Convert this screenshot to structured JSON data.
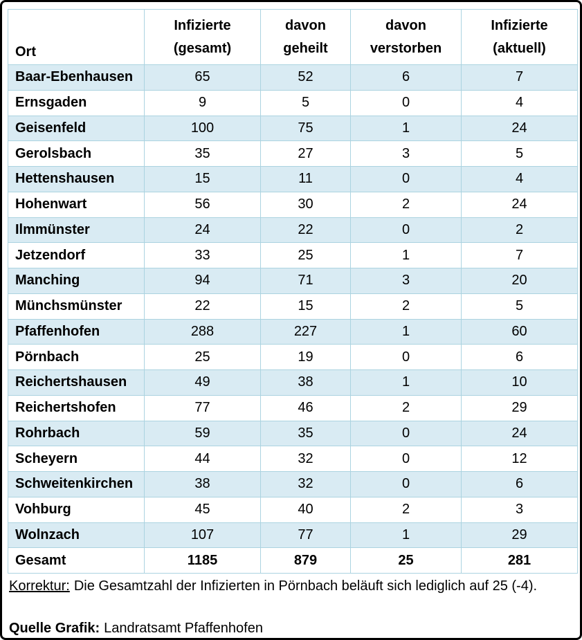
{
  "table": {
    "header": {
      "ort": "Ort",
      "infizierte_gesamt": [
        "Infizierte",
        "(gesamt)"
      ],
      "davon_geheilt": [
        "davon",
        "geheilt"
      ],
      "davon_verstorben": [
        "davon",
        "verstorben"
      ],
      "infizierte_aktuell": [
        "Infizierte",
        "(aktuell)"
      ]
    },
    "rows": [
      [
        "Baar-Ebenhausen",
        65,
        52,
        6,
        7
      ],
      [
        "Ernsgaden",
        9,
        5,
        0,
        4
      ],
      [
        "Geisenfeld",
        100,
        75,
        1,
        24
      ],
      [
        "Gerolsbach",
        35,
        27,
        3,
        5
      ],
      [
        "Hettenshausen",
        15,
        11,
        0,
        4
      ],
      [
        "Hohenwart",
        56,
        30,
        2,
        24
      ],
      [
        "Ilmmünster",
        24,
        22,
        0,
        2
      ],
      [
        "Jetzendorf",
        33,
        25,
        1,
        7
      ],
      [
        "Manching",
        94,
        71,
        3,
        20
      ],
      [
        "Münchsmünster",
        22,
        15,
        2,
        5
      ],
      [
        "Pfaffenhofen",
        288,
        227,
        1,
        60
      ],
      [
        "Pörnbach",
        25,
        19,
        0,
        6
      ],
      [
        "Reichertshausen",
        49,
        38,
        1,
        10
      ],
      [
        "Reichertshofen",
        77,
        46,
        2,
        29
      ],
      [
        "Rohrbach",
        59,
        35,
        0,
        24
      ],
      [
        "Scheyern",
        44,
        32,
        0,
        12
      ],
      [
        "Schweitenkirchen",
        38,
        32,
        0,
        6
      ],
      [
        "Vohburg",
        45,
        40,
        2,
        3
      ],
      [
        "Wolnzach",
        107,
        77,
        1,
        29
      ]
    ],
    "total_row": [
      "Gesamt",
      1185,
      879,
      25,
      281
    ]
  },
  "footer": {
    "korrektur_label": "Korrektur:",
    "korrektur_text": "Die Gesamtzahl der Infizierten in Pörnbach beläuft sich lediglich auf 25 (-4).",
    "quelle_label": "Quelle Grafik:",
    "quelle_text": "Landratsamt Pfaffenhofen"
  },
  "colors": {
    "row_highlight": "#d9ebf3",
    "cell_border": "#abd3e0",
    "frame_border": "#000000",
    "background": "#ffffff",
    "text": "#000000"
  }
}
